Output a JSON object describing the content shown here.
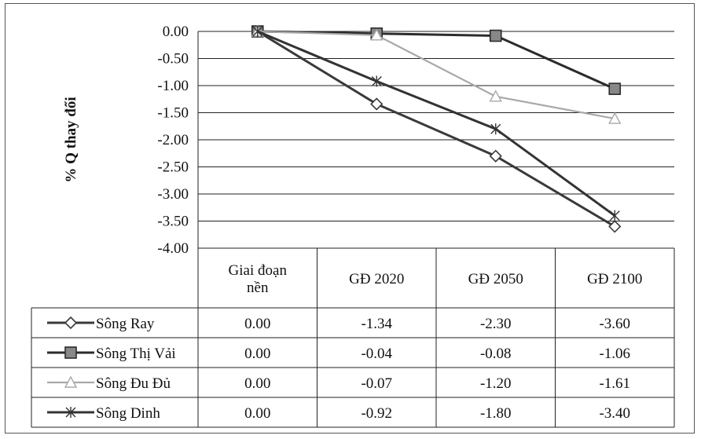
{
  "chart_data": {
    "type": "line",
    "ylabel": "% Q thay đổi",
    "ylim": [
      -4.0,
      0.0
    ],
    "y_ticks": [
      "0.00",
      "-0.50",
      "-1.00",
      "-1.50",
      "-2.00",
      "-2.50",
      "-3.00",
      "-3.50",
      "-4.00"
    ],
    "categories": [
      "Giai đoạn nền",
      "GĐ 2020",
      "GĐ 2050",
      "GĐ 2100"
    ],
    "grid": true,
    "legend": "data-table",
    "series": [
      {
        "name": "Sông Ray",
        "marker": "diamond",
        "color": "#3a3a3a",
        "values": [
          0.0,
          -1.34,
          -2.3,
          -3.6
        ],
        "labels": [
          "0.00",
          "-1.34",
          "-2.30",
          "-3.60"
        ]
      },
      {
        "name": "Sông Thị Vải",
        "marker": "square",
        "color": "#2b2b2b",
        "values": [
          0.0,
          -0.04,
          -0.08,
          -1.06
        ],
        "labels": [
          "0.00",
          "-0.04",
          "-0.08",
          "-1.06"
        ]
      },
      {
        "name": "Sông Đu Đủ",
        "marker": "triangle",
        "color": "#a8a8a8",
        "values": [
          0.0,
          -0.07,
          -1.2,
          -1.61
        ],
        "labels": [
          "0.00",
          "-0.07",
          "-1.20",
          "-1.61"
        ]
      },
      {
        "name": "Sông Dinh",
        "marker": "star",
        "color": "#333333",
        "values": [
          0.0,
          -0.92,
          -1.8,
          -3.4
        ],
        "labels": [
          "0.00",
          "-0.92",
          "-1.80",
          "-3.40"
        ]
      }
    ]
  }
}
